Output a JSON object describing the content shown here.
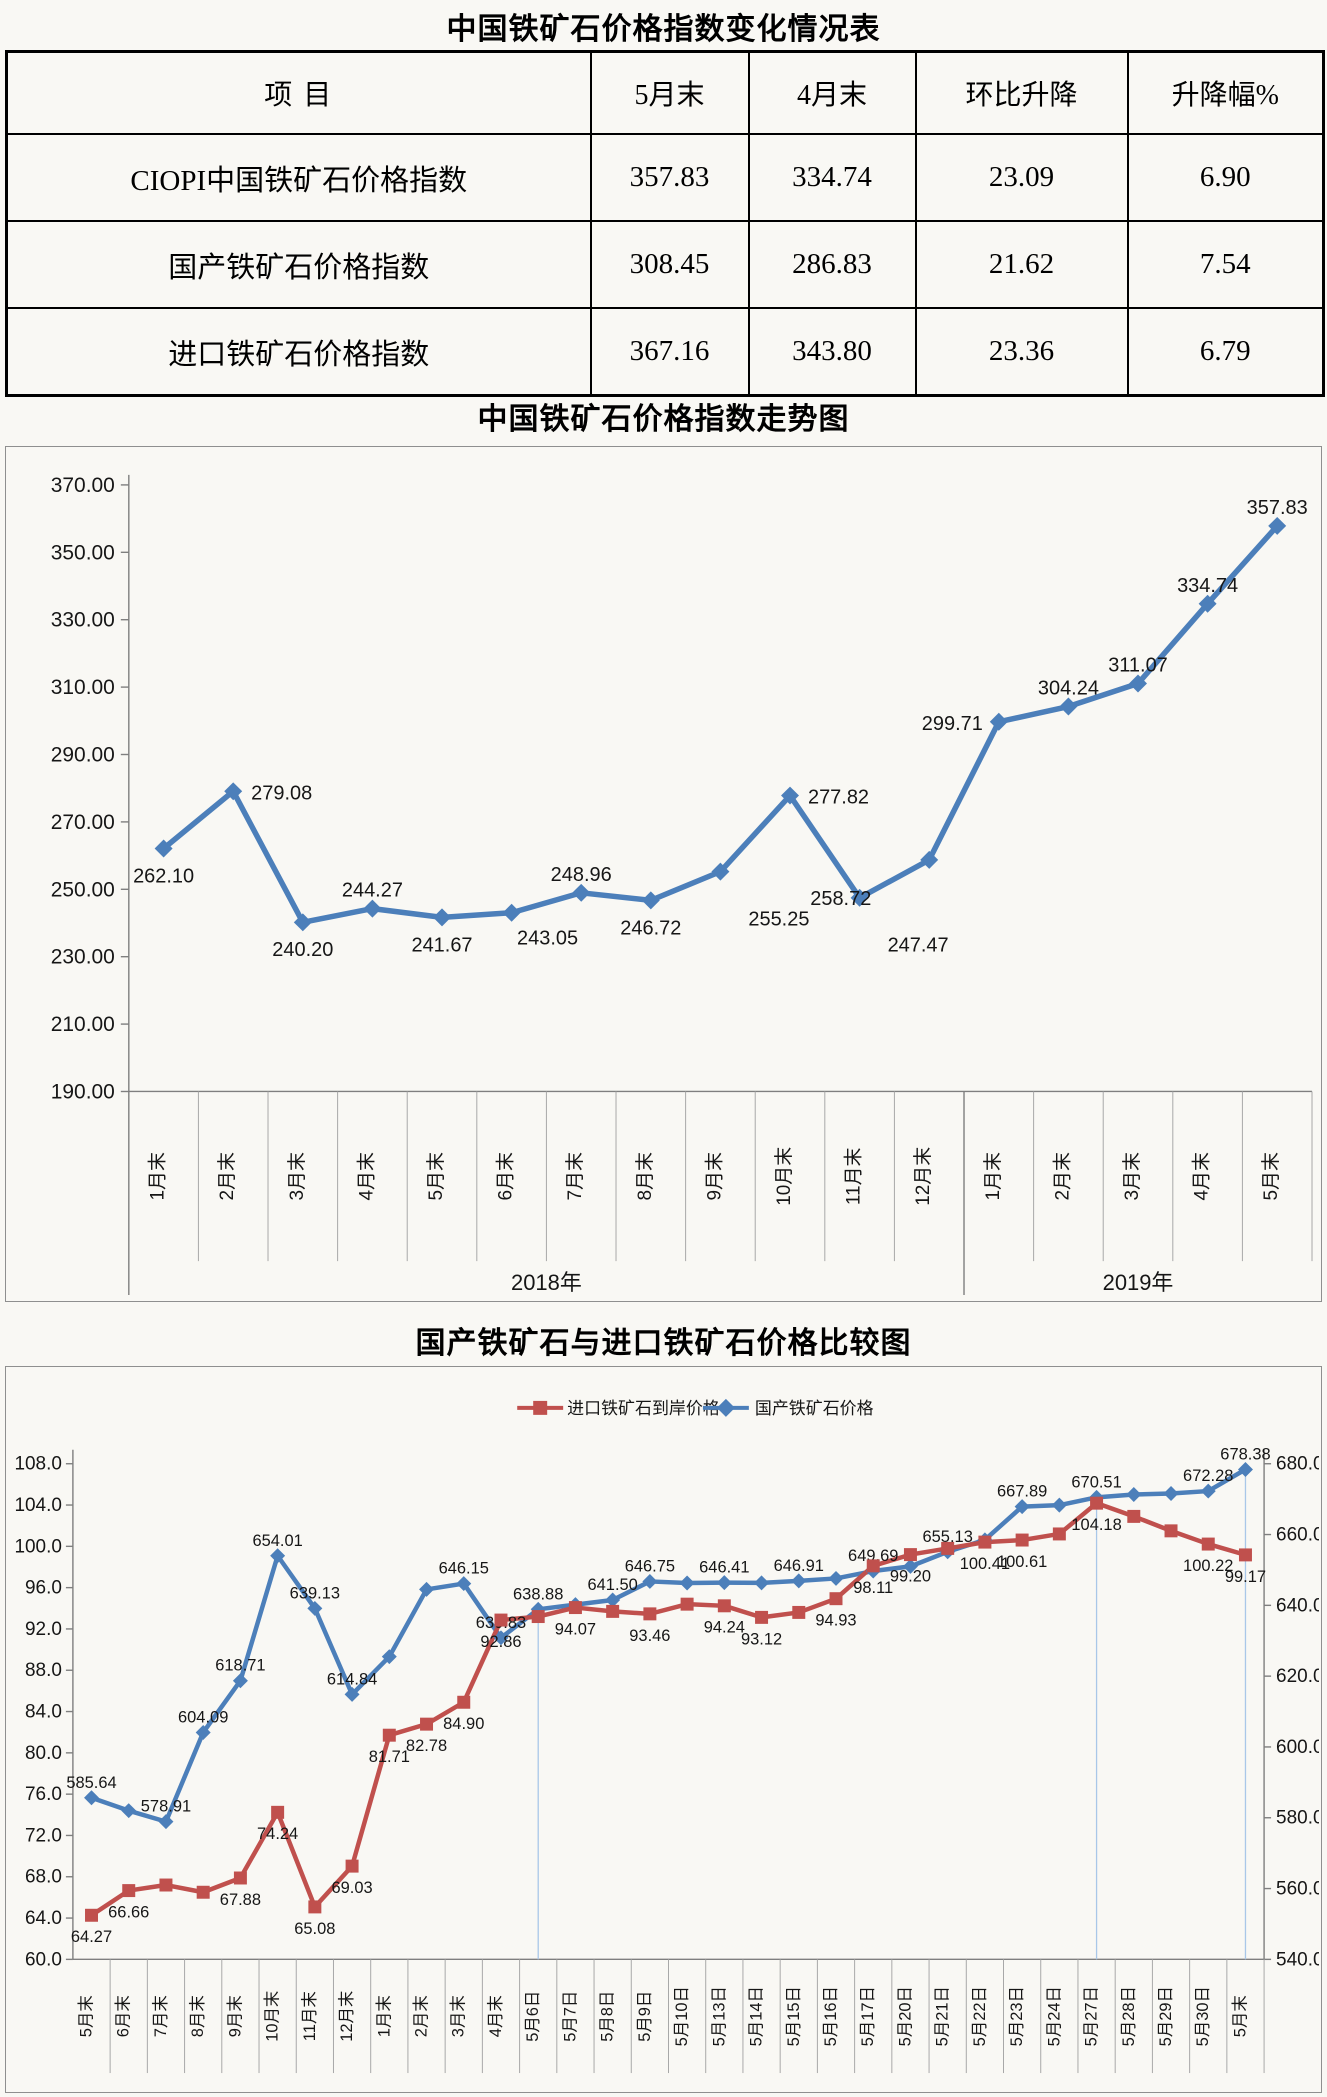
{
  "table": {
    "title": "中国铁矿石价格指数变化情况表",
    "headers": [
      "项  目",
      "5月末",
      "4月末",
      "环比升降",
      "升降幅%"
    ],
    "rows": [
      {
        "label": "CIOPI中国铁矿石价格指数",
        "values": [
          "357.83",
          "334.74",
          "23.09",
          "6.90"
        ]
      },
      {
        "label": "国产铁矿石价格指数",
        "values": [
          "308.45",
          "286.83",
          "21.62",
          "7.54"
        ]
      },
      {
        "label": "进口铁矿石价格指数",
        "values": [
          "367.16",
          "343.80",
          "23.36",
          "6.79"
        ]
      }
    ]
  },
  "chart_data": [
    {
      "id": "ciopi-trend",
      "type": "line",
      "title": "中国铁矿石价格指数走势图",
      "categories": [
        "1月末",
        "2月末",
        "3月末",
        "4月末",
        "5月末",
        "6月末",
        "7月末",
        "8月末",
        "9月末",
        "10月末",
        "11月末",
        "12月末",
        "1月末",
        "2月末",
        "3月末",
        "4月末",
        "5月末"
      ],
      "category_groups": [
        {
          "label": "2018年",
          "span": 12
        },
        {
          "label": "2019年",
          "span": 5
        }
      ],
      "ylim": [
        190,
        370
      ],
      "ytick_step": 20,
      "ytick_format_decimals": 2,
      "grid": false,
      "legend_position": "none",
      "series": [
        {
          "name": "CIOPI中国铁矿石价格指数",
          "color": "#4c7fba",
          "marker": "diamond",
          "values": [
            262.1,
            279.08,
            240.2,
            244.27,
            241.67,
            243.05,
            248.96,
            246.72,
            255.25,
            277.82,
            247.47,
            258.72,
            299.71,
            304.24,
            311.07,
            334.74,
            357.83
          ],
          "labels": [
            "262.10",
            "279.08",
            "240.20",
            "244.27",
            "241.67",
            "243.05",
            "248.96",
            "246.72",
            "255.25",
            "277.82",
            "247.47",
            "258.72",
            "299.71",
            "304.24",
            "311.07",
            "334.74",
            "357.83"
          ]
        }
      ],
      "label_positions": [
        "below",
        "right",
        "below",
        "above",
        "below",
        "below-right",
        "above",
        "below",
        "right-below",
        "right",
        "right-below",
        "below-left",
        "left",
        "above",
        "above",
        "above",
        "above"
      ]
    },
    {
      "id": "domestic-vs-imported",
      "type": "line",
      "title": "国产铁矿石与进口铁矿石价格比较图",
      "categories": [
        "5月末",
        "6月末",
        "7月末",
        "8月末",
        "9月末",
        "10月末",
        "11月末",
        "12月末",
        "1月末",
        "2月末",
        "3月末",
        "4月末",
        "5月6日",
        "5月7日",
        "5月8日",
        "5月9日",
        "5月10日",
        "5月13日",
        "5月14日",
        "5月15日",
        "5月16日",
        "5月17日",
        "5月20日",
        "5月21日",
        "5月22日",
        "5月23日",
        "5月24日",
        "5月27日",
        "5月28日",
        "5月29日",
        "5月30日",
        "5月末"
      ],
      "left_axis": {
        "min": 60,
        "max": 108,
        "step": 4,
        "format_decimals": 1
      },
      "right_axis": {
        "min": 540,
        "max": 680,
        "step": 20,
        "format_decimals": 1
      },
      "grid": false,
      "legend_position": "top",
      "drop_line_indices": [
        12,
        27,
        31
      ],
      "drop_line_color": "#a9c7e8",
      "series": [
        {
          "name": "进口铁矿石到岸价格",
          "color": "#c0504d",
          "marker": "square",
          "axis": "left",
          "values": [
            64.27,
            66.66,
            67.2,
            66.5,
            67.88,
            74.24,
            65.08,
            69.03,
            81.71,
            82.78,
            84.9,
            92.86,
            93.2,
            94.07,
            93.7,
            93.46,
            94.4,
            94.24,
            93.12,
            93.6,
            94.93,
            98.11,
            99.2,
            99.8,
            100.41,
            100.61,
            101.2,
            104.18,
            102.9,
            101.5,
            100.22,
            99.17
          ],
          "labels": [
            "64.27",
            "66.66",
            null,
            null,
            "67.88",
            "74.24",
            "65.08",
            "69.03",
            "81.71",
            "82.78",
            "84.90",
            "92.86",
            null,
            "94.07",
            null,
            "93.46",
            null,
            "94.24",
            "93.12",
            null,
            "94.93",
            "98.11",
            "99.20",
            null,
            "100.41",
            "100.61",
            null,
            "104.18",
            null,
            null,
            "100.22",
            "99.17"
          ]
        },
        {
          "name": "国产铁矿石价格",
          "color": "#4c7fba",
          "marker": "diamond",
          "axis": "right",
          "values": [
            585.64,
            582.0,
            578.91,
            604.09,
            618.71,
            654.01,
            639.13,
            614.84,
            625.5,
            644.5,
            646.15,
            630.83,
            638.88,
            640.2,
            641.5,
            646.75,
            646.3,
            646.41,
            646.35,
            646.91,
            647.6,
            649.69,
            651.0,
            655.13,
            658.5,
            667.89,
            668.3,
            670.51,
            671.3,
            671.6,
            672.28,
            678.38
          ],
          "labels": [
            "585.64",
            null,
            "578.91",
            "604.09",
            "618.71",
            "654.01",
            "639.13",
            "614.84",
            null,
            null,
            "646.15",
            "630.83",
            "638.88",
            null,
            "641.50",
            "646.75",
            null,
            "646.41",
            null,
            "646.91",
            null,
            "649.69",
            null,
            "655.13",
            null,
            "667.89",
            null,
            "670.51",
            null,
            null,
            "672.28",
            "678.38"
          ]
        }
      ]
    }
  ]
}
